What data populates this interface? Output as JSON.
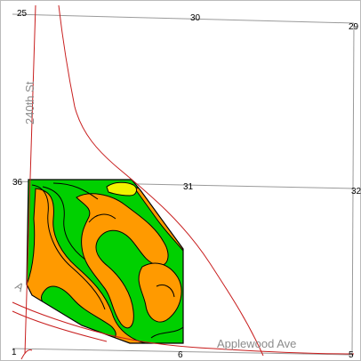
{
  "colors": {
    "road": "#c81e1e",
    "section_line": "#9a9a9a",
    "soil_green": "#00d000",
    "soil_orange": "#ff9a00",
    "soil_yellow": "#f2f200",
    "soil_outline": "#000000",
    "road_label": "#8c8c8c"
  },
  "sections": {
    "s25": "25",
    "s30": "30",
    "s29": "29",
    "s36": "36",
    "s31": "31",
    "s32": "32",
    "s1": "1",
    "s6": "6",
    "s5": "5"
  },
  "roads": {
    "north_south": "240th St",
    "east_west": "Applewood Ave",
    "diagonal_partial": "A"
  },
  "soil_units": [
    {
      "name": "soil-unit-green",
      "color": "#00d000"
    },
    {
      "name": "soil-unit-orange",
      "color": "#ff9a00"
    },
    {
      "name": "soil-unit-yellow",
      "color": "#f2f200"
    }
  ]
}
